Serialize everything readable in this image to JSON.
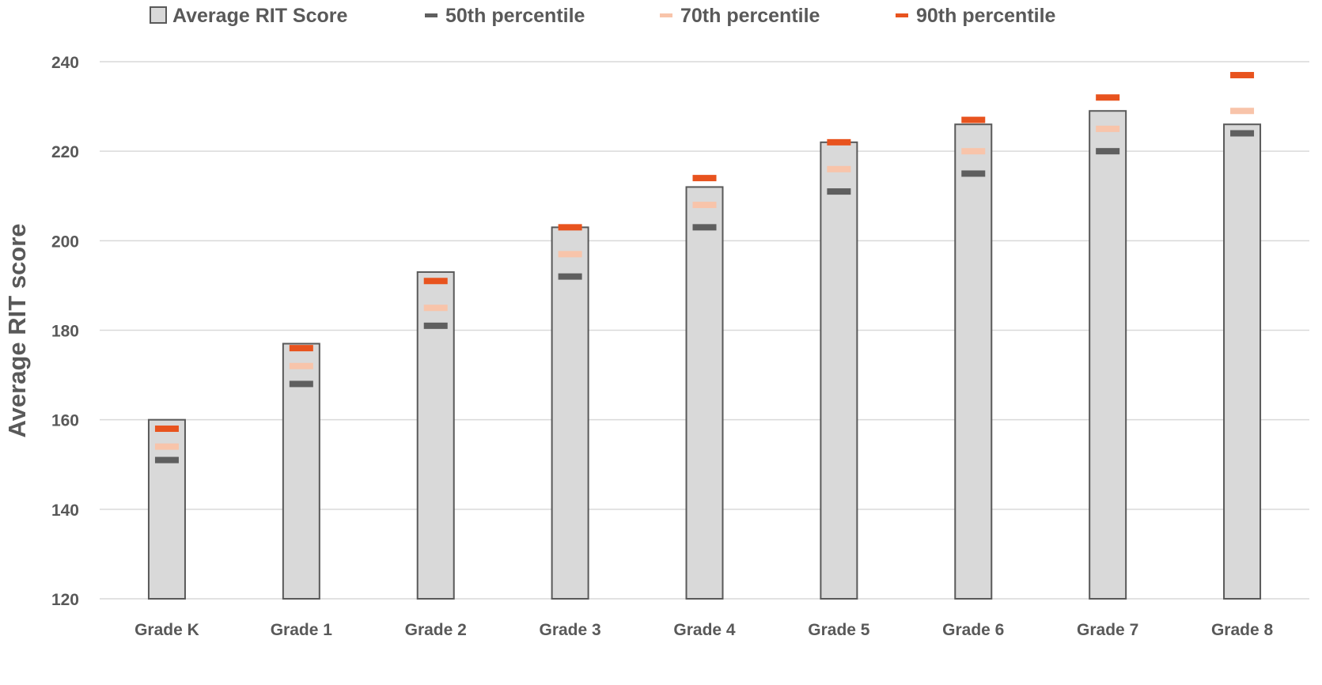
{
  "chart_data": {
    "type": "bar",
    "title": "",
    "xlabel": "",
    "ylabel": "Average RIT score",
    "ylim": [
      120,
      240
    ],
    "yticks": [
      120,
      140,
      160,
      180,
      200,
      220,
      240
    ],
    "grid": true,
    "legend_position": "top",
    "categories": [
      "Grade K",
      "Grade 1",
      "Grade 2",
      "Grade 3",
      "Grade 4",
      "Grade 5",
      "Grade 6",
      "Grade 7",
      "Grade 8"
    ],
    "series": [
      {
        "name": "Average RIT Score",
        "kind": "bar",
        "color": "#d9d9d9",
        "stroke": "#595959",
        "values": [
          160,
          177,
          193,
          203,
          212,
          222,
          226,
          229,
          226
        ]
      },
      {
        "name": "50th percentile",
        "kind": "marker",
        "color": "#5f5f5f",
        "values": [
          151,
          168,
          181,
          192,
          203,
          211,
          215,
          220,
          224
        ]
      },
      {
        "name": "70th percentile",
        "kind": "marker",
        "color": "#f8c4aa",
        "values": [
          154,
          172,
          185,
          197,
          208,
          216,
          220,
          225,
          229
        ]
      },
      {
        "name": "90th percentile",
        "kind": "marker",
        "color": "#e8531e",
        "values": [
          158,
          176,
          191,
          203,
          214,
          222,
          227,
          232,
          237
        ]
      }
    ]
  }
}
